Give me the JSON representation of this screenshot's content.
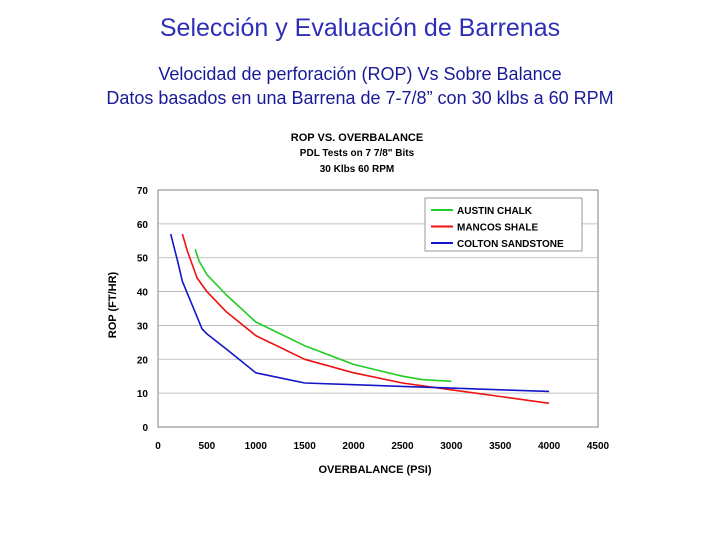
{
  "slide": {
    "title": "Selección y Evaluación de Barrenas",
    "subtitle1": "Velocidad de perforación (ROP) Vs Sobre Balance",
    "subtitle2": "Datos basados en una Barrena de 7-7/8” con 30 klbs a 60 RPM"
  },
  "chart_data": {
    "type": "line",
    "title": [
      "ROP VS. OVERBALANCE",
      "PDL Tests on 7 7/8\" Bits",
      "30 Klbs 60 RPM"
    ],
    "xlabel": "OVERBALANCE (PSI)",
    "ylabel": "ROP (FT/HR)",
    "xlim": [
      0,
      4500
    ],
    "ylim": [
      0,
      70
    ],
    "xticks": [
      0,
      500,
      1000,
      1500,
      2000,
      2500,
      3000,
      3500,
      4000,
      4500
    ],
    "yticks": [
      0,
      10,
      20,
      30,
      40,
      50,
      60,
      70
    ],
    "grid": true,
    "legend_position": "top-right",
    "series": [
      {
        "name": "AUSTIN CHALK",
        "color": "#22cc22",
        "points": [
          [
            380,
            52.5
          ],
          [
            420,
            49
          ],
          [
            500,
            45
          ],
          [
            700,
            39
          ],
          [
            1000,
            31
          ],
          [
            1500,
            24
          ],
          [
            2000,
            18.5
          ],
          [
            2500,
            15
          ],
          [
            2700,
            14
          ],
          [
            3000,
            13.5
          ]
        ]
      },
      {
        "name": "MANCOS SHALE",
        "color": "#ee1111",
        "points": [
          [
            250,
            57
          ],
          [
            300,
            52
          ],
          [
            400,
            44
          ],
          [
            500,
            40
          ],
          [
            700,
            34
          ],
          [
            1000,
            27
          ],
          [
            1500,
            20
          ],
          [
            2000,
            16
          ],
          [
            2500,
            13
          ],
          [
            3000,
            11
          ],
          [
            3500,
            9
          ],
          [
            4000,
            7
          ]
        ]
      },
      {
        "name": "COLTON SANDSTONE",
        "color": "#1515cc",
        "points": [
          [
            130,
            57
          ],
          [
            200,
            49
          ],
          [
            250,
            43
          ],
          [
            350,
            36
          ],
          [
            450,
            29
          ],
          [
            500,
            27.5
          ],
          [
            700,
            23
          ],
          [
            1000,
            16
          ],
          [
            1500,
            13
          ],
          [
            2000,
            12.5
          ],
          [
            2500,
            12
          ],
          [
            3000,
            11.5
          ],
          [
            3500,
            11
          ],
          [
            4000,
            10.5
          ]
        ]
      }
    ]
  }
}
